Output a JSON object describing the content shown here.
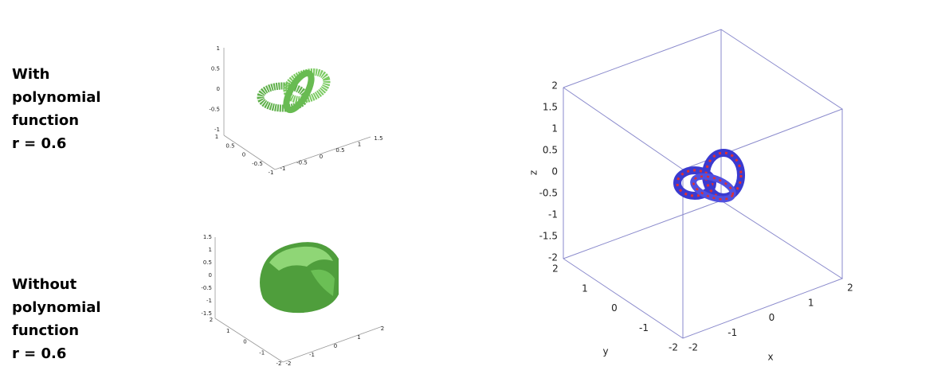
{
  "panels": [
    {
      "label_lines": [
        "With",
        "polynomial",
        "function",
        "r = 0.6"
      ],
      "plot": {
        "z_ticks": [
          "1",
          "0.5",
          "0",
          "-0.5",
          "-1"
        ],
        "left_ticks": [
          "1",
          "0.5",
          "0",
          "-0.5",
          "-1"
        ],
        "right_ticks": [
          "-1",
          "-0.5",
          "0",
          "0.5",
          "1",
          "1.5"
        ]
      }
    },
    {
      "label_lines": [
        "Without",
        "polynomial",
        "function",
        "r = 0.6"
      ],
      "plot": {
        "z_ticks": [
          "1.5",
          "1",
          "0.5",
          "0",
          "-0.5",
          "-1",
          "-1.5"
        ],
        "left_ticks": [
          "2",
          "1",
          "0",
          "-1",
          "-2"
        ],
        "right_ticks": [
          "-2",
          "-1",
          "0",
          "1",
          "2"
        ]
      }
    }
  ],
  "main_plot": {
    "z_label": "z",
    "y_label": "y",
    "x_label": "x",
    "z_ticks": [
      "2",
      "1.5",
      "1",
      "0.5",
      "0",
      "-0.5",
      "-1",
      "-1.5",
      "-2"
    ],
    "y_ticks": [
      "2",
      "1",
      "0",
      "-1",
      "-2"
    ],
    "x_ticks": [
      "-2",
      "-1",
      "0",
      "1",
      "2"
    ]
  }
}
